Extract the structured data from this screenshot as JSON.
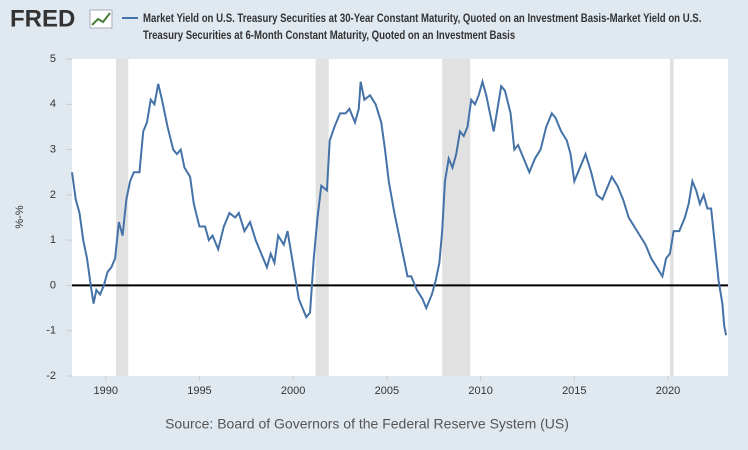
{
  "chart_data": {
    "type": "line",
    "logo": "FRED",
    "source": "Source: Board of Governors of the Federal Reserve System (US)",
    "ylabel": "%-%",
    "xlim": [
      1988.2,
      2023.2
    ],
    "xticks": [
      1990,
      1995,
      2000,
      2005,
      2010,
      2015,
      2020
    ],
    "ylim": [
      -2,
      5
    ],
    "yticks": [
      -2,
      -1,
      0,
      1,
      2,
      3,
      4,
      5
    ],
    "grid": false,
    "zero_line": true,
    "recessions": [
      [
        1990.55,
        1991.2
      ],
      [
        2001.2,
        2001.9
      ],
      [
        2007.95,
        2009.45
      ],
      [
        2020.1,
        2020.3
      ]
    ],
    "x": [
      1988.2,
      1988.4,
      1988.6,
      1988.8,
      1989.0,
      1989.2,
      1989.35,
      1989.5,
      1989.7,
      1989.9,
      1990.1,
      1990.3,
      1990.5,
      1990.7,
      1990.9,
      1991.1,
      1991.3,
      1991.5,
      1991.8,
      1992.0,
      1992.2,
      1992.4,
      1992.6,
      1992.8,
      1993.0,
      1993.3,
      1993.6,
      1993.8,
      1994.0,
      1994.2,
      1994.5,
      1994.7,
      1995.0,
      1995.3,
      1995.5,
      1995.7,
      1996.0,
      1996.3,
      1996.6,
      1996.9,
      1997.1,
      1997.4,
      1997.7,
      1998.0,
      1998.3,
      1998.6,
      1998.8,
      1999.0,
      1999.2,
      1999.5,
      1999.7,
      1999.9,
      2000.1,
      2000.3,
      2000.5,
      2000.7,
      2000.9,
      2001.1,
      2001.3,
      2001.5,
      2001.8,
      2001.95,
      2002.2,
      2002.5,
      2002.8,
      2003.0,
      2003.3,
      2003.5,
      2003.6,
      2003.8,
      2004.1,
      2004.4,
      2004.7,
      2004.9,
      2005.1,
      2005.4,
      2005.7,
      2005.9,
      2006.1,
      2006.3,
      2006.6,
      2006.9,
      2007.1,
      2007.4,
      2007.6,
      2007.8,
      2007.95,
      2008.1,
      2008.3,
      2008.5,
      2008.7,
      2008.9,
      2009.1,
      2009.3,
      2009.5,
      2009.7,
      2009.9,
      2010.1,
      2010.3,
      2010.5,
      2010.7,
      2010.9,
      2011.1,
      2011.3,
      2011.6,
      2011.8,
      2012.0,
      2012.3,
      2012.6,
      2012.9,
      2013.2,
      2013.5,
      2013.8,
      2014.0,
      2014.3,
      2014.6,
      2014.8,
      2015.0,
      2015.3,
      2015.6,
      2015.9,
      2016.2,
      2016.5,
      2016.8,
      2017.0,
      2017.3,
      2017.6,
      2017.9,
      2018.2,
      2018.5,
      2018.8,
      2019.1,
      2019.4,
      2019.7,
      2019.9,
      2020.1,
      2020.3,
      2020.6,
      2020.9,
      2021.1,
      2021.3,
      2021.5,
      2021.7,
      2021.9,
      2022.1,
      2022.3,
      2022.5,
      2022.7,
      2022.9,
      2023.0,
      2023.1
    ],
    "series": [
      {
        "name": "Market Yield on U.S. Treasury Securities at 30-Year Constant Maturity, Quoted on an Investment Basis-Market Yield on U.S. Treasury Securities at 6-Month Constant Maturity, Quoted on an Investment Basis",
        "color": "#4572a7",
        "values": [
          2.5,
          1.9,
          1.6,
          1.0,
          0.6,
          0.0,
          -0.4,
          -0.1,
          -0.2,
          0.0,
          0.3,
          0.4,
          0.6,
          1.4,
          1.1,
          1.9,
          2.3,
          2.5,
          2.5,
          3.4,
          3.6,
          4.1,
          4.0,
          4.45,
          4.1,
          3.5,
          3.0,
          2.9,
          3.0,
          2.6,
          2.4,
          1.8,
          1.3,
          1.3,
          1.0,
          1.1,
          0.8,
          1.3,
          1.6,
          1.5,
          1.6,
          1.2,
          1.4,
          1.0,
          0.7,
          0.4,
          0.7,
          0.5,
          1.1,
          0.9,
          1.2,
          0.7,
          0.2,
          -0.3,
          -0.5,
          -0.7,
          -0.6,
          0.6,
          1.5,
          2.2,
          2.1,
          3.2,
          3.5,
          3.8,
          3.8,
          3.9,
          3.6,
          3.9,
          4.5,
          4.1,
          4.2,
          4.0,
          3.6,
          3.0,
          2.3,
          1.6,
          1.0,
          0.6,
          0.2,
          0.2,
          -0.1,
          -0.3,
          -0.5,
          -0.2,
          0.1,
          0.5,
          1.2,
          2.3,
          2.8,
          2.6,
          2.9,
          3.4,
          3.3,
          3.5,
          4.1,
          4.0,
          4.2,
          4.5,
          4.2,
          3.8,
          3.4,
          3.9,
          4.4,
          4.3,
          3.8,
          3.0,
          3.1,
          2.8,
          2.5,
          2.8,
          3.0,
          3.5,
          3.8,
          3.7,
          3.4,
          3.2,
          2.9,
          2.3,
          2.6,
          2.9,
          2.5,
          2.0,
          1.9,
          2.2,
          2.4,
          2.2,
          1.9,
          1.5,
          1.3,
          1.1,
          0.9,
          0.6,
          0.4,
          0.2,
          0.6,
          0.7,
          1.2,
          1.2,
          1.5,
          1.8,
          2.3,
          2.1,
          1.8,
          2.0,
          1.7,
          1.7,
          0.9,
          0.1,
          -0.4,
          -0.9,
          -1.1
        ]
      }
    ]
  }
}
